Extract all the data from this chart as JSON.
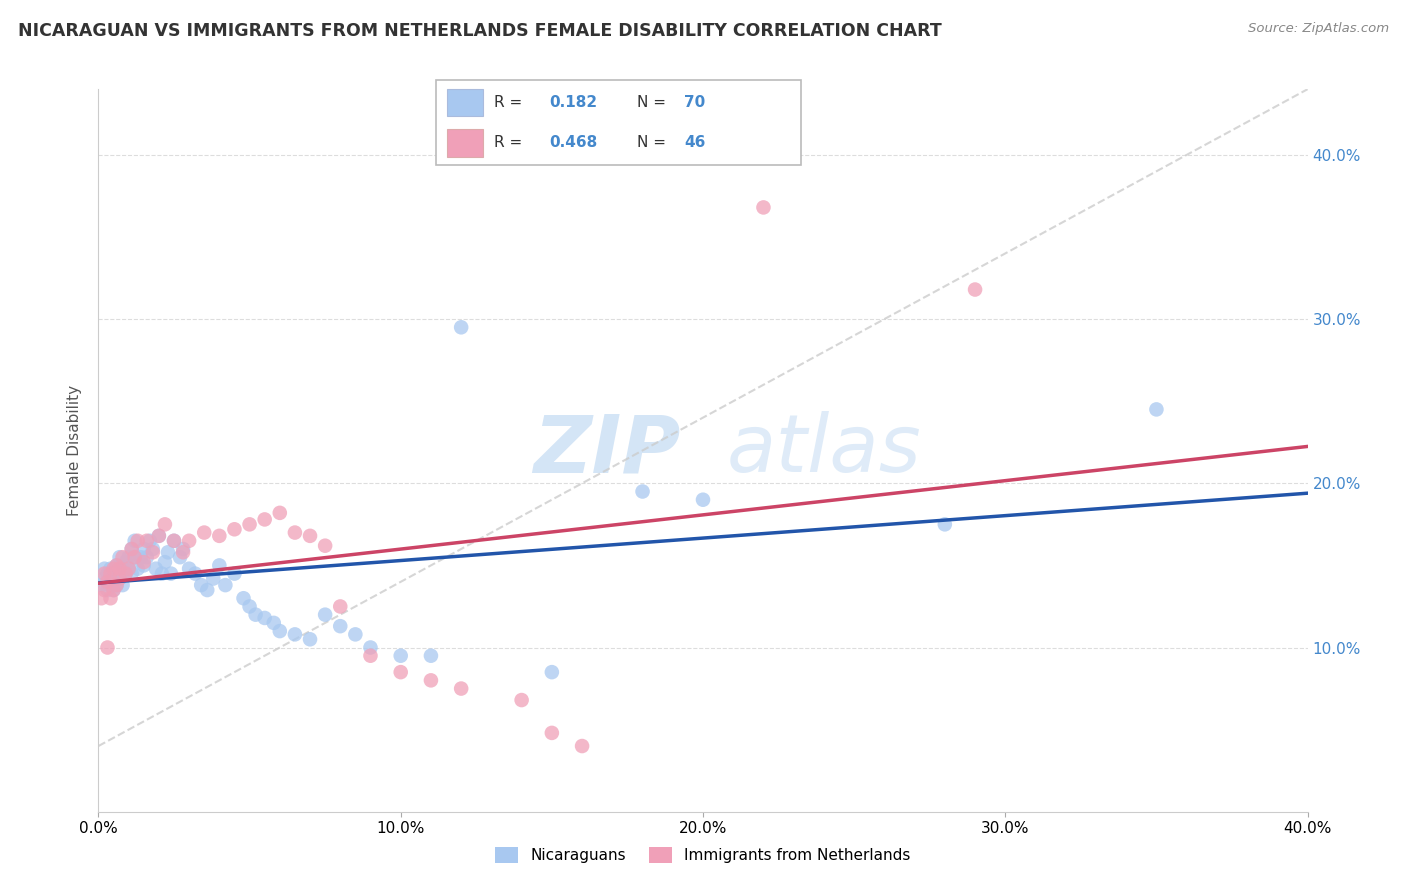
{
  "title": "NICARAGUAN VS IMMIGRANTS FROM NETHERLANDS FEMALE DISABILITY CORRELATION CHART",
  "source": "Source: ZipAtlas.com",
  "ylabel": "Female Disability",
  "xlim": [
    0.0,
    0.4
  ],
  "ylim": [
    0.0,
    0.44
  ],
  "blue_color": "#a8c8f0",
  "pink_color": "#f0a0b8",
  "blue_line_color": "#2255aa",
  "pink_line_color": "#cc4466",
  "dashed_line_color": "#cccccc",
  "watermark_zip": "ZIP",
  "watermark_atlas": "atlas",
  "legend_r_blue": "0.182",
  "legend_n_blue": "70",
  "legend_r_pink": "0.468",
  "legend_n_pink": "46",
  "blue_x": [
    0.001,
    0.002,
    0.002,
    0.003,
    0.003,
    0.003,
    0.004,
    0.004,
    0.004,
    0.005,
    0.005,
    0.005,
    0.006,
    0.006,
    0.007,
    0.007,
    0.008,
    0.008,
    0.009,
    0.009,
    0.01,
    0.01,
    0.011,
    0.011,
    0.012,
    0.012,
    0.013,
    0.014,
    0.015,
    0.015,
    0.016,
    0.017,
    0.018,
    0.019,
    0.02,
    0.021,
    0.022,
    0.023,
    0.024,
    0.025,
    0.027,
    0.028,
    0.03,
    0.032,
    0.034,
    0.036,
    0.038,
    0.04,
    0.042,
    0.045,
    0.048,
    0.05,
    0.052,
    0.055,
    0.058,
    0.06,
    0.065,
    0.07,
    0.075,
    0.08,
    0.085,
    0.09,
    0.1,
    0.11,
    0.12,
    0.15,
    0.18,
    0.2,
    0.35,
    0.28
  ],
  "blue_y": [
    0.138,
    0.142,
    0.148,
    0.135,
    0.14,
    0.145,
    0.138,
    0.142,
    0.148,
    0.135,
    0.14,
    0.145,
    0.138,
    0.15,
    0.142,
    0.155,
    0.148,
    0.138,
    0.145,
    0.152,
    0.155,
    0.148,
    0.16,
    0.145,
    0.155,
    0.165,
    0.148,
    0.155,
    0.15,
    0.16,
    0.155,
    0.165,
    0.16,
    0.148,
    0.168,
    0.145,
    0.152,
    0.158,
    0.145,
    0.165,
    0.155,
    0.16,
    0.148,
    0.145,
    0.138,
    0.135,
    0.142,
    0.15,
    0.138,
    0.145,
    0.13,
    0.125,
    0.12,
    0.118,
    0.115,
    0.11,
    0.108,
    0.105,
    0.12,
    0.113,
    0.108,
    0.1,
    0.095,
    0.095,
    0.295,
    0.085,
    0.195,
    0.19,
    0.245,
    0.175
  ],
  "pink_x": [
    0.001,
    0.002,
    0.002,
    0.003,
    0.003,
    0.004,
    0.004,
    0.005,
    0.005,
    0.006,
    0.006,
    0.007,
    0.007,
    0.008,
    0.009,
    0.01,
    0.011,
    0.012,
    0.013,
    0.015,
    0.016,
    0.018,
    0.02,
    0.022,
    0.025,
    0.028,
    0.03,
    0.035,
    0.04,
    0.045,
    0.05,
    0.055,
    0.06,
    0.065,
    0.07,
    0.075,
    0.08,
    0.09,
    0.1,
    0.11,
    0.12,
    0.14,
    0.15,
    0.16,
    0.22,
    0.29
  ],
  "pink_y": [
    0.13,
    0.135,
    0.145,
    0.1,
    0.14,
    0.13,
    0.145,
    0.135,
    0.148,
    0.138,
    0.15,
    0.142,
    0.148,
    0.155,
    0.145,
    0.148,
    0.16,
    0.155,
    0.165,
    0.152,
    0.165,
    0.158,
    0.168,
    0.175,
    0.165,
    0.158,
    0.165,
    0.17,
    0.168,
    0.172,
    0.175,
    0.178,
    0.182,
    0.17,
    0.168,
    0.162,
    0.125,
    0.095,
    0.085,
    0.08,
    0.075,
    0.068,
    0.048,
    0.04,
    0.368,
    0.318
  ]
}
